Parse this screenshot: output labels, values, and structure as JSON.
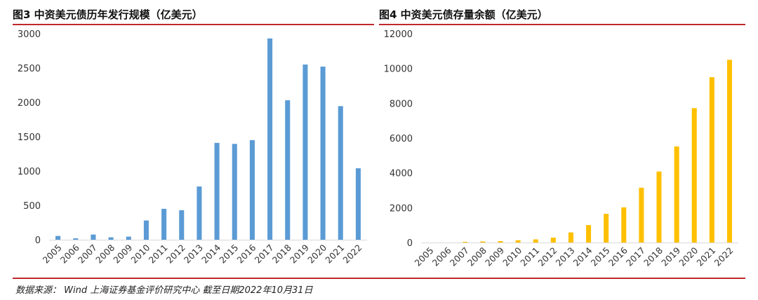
{
  "theme": {
    "rule_color": "#c0282d",
    "axis_color": "#d9d9d9"
  },
  "source_note": "数据来源： Wind 上海证券基金评价研究中心 截至日期2022年10月31日",
  "chart_data": [
    {
      "type": "bar",
      "title": "图3 中资美元债历年发行规模（亿美元）",
      "categories": [
        "2005",
        "2006",
        "2007",
        "2008",
        "2009",
        "2010",
        "2011",
        "2012",
        "2013",
        "2014",
        "2015",
        "2016",
        "2017",
        "2018",
        "2019",
        "2020",
        "2021",
        "2022"
      ],
      "values": [
        55,
        20,
        75,
        35,
        45,
        280,
        450,
        430,
        775,
        1410,
        1395,
        1450,
        2930,
        2030,
        2550,
        2520,
        1945,
        1040
      ],
      "ylim": [
        0,
        3000
      ],
      "yticks": [
        0,
        500,
        1000,
        1500,
        2000,
        2500,
        3000
      ],
      "color": "#5b9bd5",
      "xlabel": "",
      "ylabel": "",
      "grid": false,
      "legend": "none"
    },
    {
      "type": "bar",
      "title": "图4 中资美元债存量余额（亿美元）",
      "categories": [
        "2005",
        "2006",
        "2007",
        "2008",
        "2009",
        "2010",
        "2011",
        "2012",
        "2013",
        "2014",
        "2015",
        "2016",
        "2017",
        "2018",
        "2019",
        "2020",
        "2021",
        "2022"
      ],
      "values": [
        0,
        0,
        40,
        60,
        80,
        130,
        180,
        280,
        580,
        1000,
        1650,
        2020,
        3150,
        4080,
        5520,
        7720,
        9500,
        10500
      ],
      "ylim": [
        0,
        12000
      ],
      "yticks": [
        0,
        2000,
        4000,
        6000,
        8000,
        10000,
        12000
      ],
      "color": "#ffc000",
      "xlabel": "",
      "ylabel": "",
      "grid": false,
      "legend": "none"
    }
  ]
}
